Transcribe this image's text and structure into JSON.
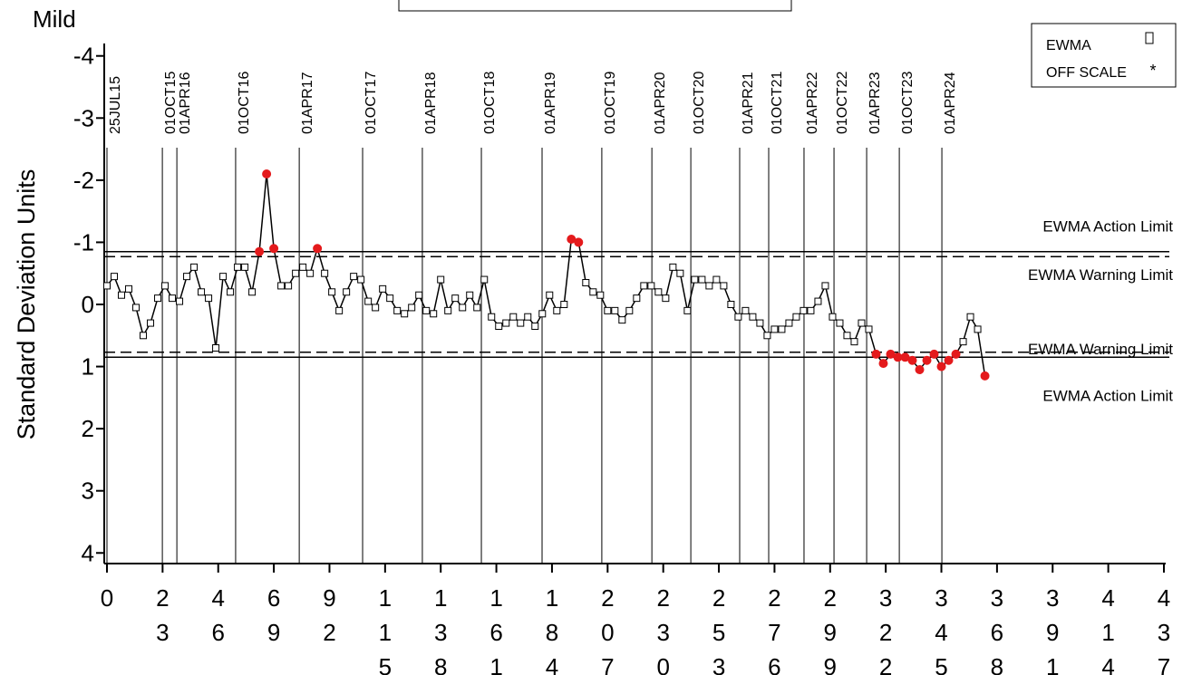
{
  "chart_data": {
    "type": "line",
    "title": "Mild",
    "y_label": "Standard Deviation Units",
    "y_reversed": true,
    "xlim": [
      0,
      437
    ],
    "xticks": [
      0,
      23,
      46,
      69,
      92,
      115,
      138,
      161,
      184,
      207,
      230,
      253,
      276,
      299,
      322,
      345,
      368,
      391,
      414,
      437
    ],
    "ylim": [
      -4.2,
      4.2
    ],
    "yticks": [
      -4,
      -3,
      -2,
      -1,
      0,
      1,
      2,
      3,
      4
    ],
    "reference_lines": [
      {
        "label": "25JUL15",
        "x": 0
      },
      {
        "label": "01OCT15",
        "x": 22.9
      },
      {
        "label": "01APR16",
        "x": 28.9
      },
      {
        "label": "01OCT16",
        "x": 53.2
      },
      {
        "label": "01APR17",
        "x": 79.5
      },
      {
        "label": "01OCT17",
        "x": 105.7
      },
      {
        "label": "01APR18",
        "x": 130.4
      },
      {
        "label": "01OCT18",
        "x": 154.8
      },
      {
        "label": "01APR19",
        "x": 179.9
      },
      {
        "label": "01OCT19",
        "x": 204.6
      },
      {
        "label": "01APR20",
        "x": 225.3
      },
      {
        "label": "01OCT20",
        "x": 241.4
      },
      {
        "label": "01APR21",
        "x": 261.6
      },
      {
        "label": "01OCT21",
        "x": 273.6
      },
      {
        "label": "01APR22",
        "x": 288.2
      },
      {
        "label": "01OCT22",
        "x": 300.6
      },
      {
        "label": "01APR23",
        "x": 314.1
      },
      {
        "label": "01OCT23",
        "x": 327.6
      },
      {
        "label": "01APR24",
        "x": 345.2
      }
    ],
    "limits": [
      {
        "label": "EWMA Action Limit",
        "value": -0.85,
        "style": "solid"
      },
      {
        "label": "EWMA Warning Limit",
        "value": -0.77,
        "style": "dashed"
      },
      {
        "label": "EWMA Warning Limit",
        "value": 0.77,
        "style": "dashed"
      },
      {
        "label": "EWMA Action Limit",
        "value": 0.85,
        "style": "solid"
      }
    ],
    "series": [
      {
        "name": "EWMA",
        "color": "#000000",
        "marker_fill": "#ffffff",
        "alert_color": "#e41a1c",
        "x": [
          0,
          3,
          6,
          9,
          12,
          15,
          18,
          21,
          24,
          27,
          30,
          33,
          36,
          39,
          42,
          45,
          48,
          51,
          54,
          57,
          60,
          63,
          66,
          69,
          72,
          75,
          78,
          81,
          84,
          87,
          90,
          93,
          96,
          99,
          102,
          105,
          108,
          111,
          114,
          117,
          120,
          123,
          126,
          129,
          132,
          135,
          138,
          141,
          144,
          147,
          150,
          153,
          156,
          159,
          162,
          165,
          168,
          171,
          174,
          177,
          180,
          183,
          186,
          189,
          192,
          195,
          198,
          201,
          204,
          207,
          210,
          213,
          216,
          219,
          222,
          225,
          228,
          231,
          234,
          237,
          240,
          243,
          246,
          249,
          252,
          255,
          258,
          261,
          264,
          267,
          270,
          273,
          276,
          279,
          282,
          285,
          288,
          291,
          294,
          297,
          300,
          303,
          306,
          309,
          312,
          315,
          318,
          321,
          324,
          327,
          330,
          333,
          336,
          339,
          342,
          345,
          348,
          351,
          354,
          357,
          360,
          363
        ],
        "values": [
          -0.3,
          -0.45,
          -0.15,
          -0.25,
          0.05,
          0.5,
          0.3,
          -0.1,
          -0.3,
          -0.1,
          -0.05,
          -0.45,
          -0.6,
          -0.2,
          -0.1,
          0.7,
          -0.45,
          -0.2,
          -0.6,
          -0.6,
          -0.2,
          -0.85,
          -2.1,
          -0.9,
          -0.3,
          -0.3,
          -0.5,
          -0.6,
          -0.5,
          -0.9,
          -0.5,
          -0.2,
          0.1,
          -0.2,
          -0.45,
          -0.4,
          -0.05,
          0.05,
          -0.25,
          -0.1,
          0.1,
          0.15,
          0.05,
          -0.15,
          0.1,
          0.15,
          -0.4,
          0.1,
          -0.1,
          0.05,
          -0.15,
          0.05,
          -0.4,
          0.2,
          0.35,
          0.3,
          0.2,
          0.3,
          0.2,
          0.35,
          0.15,
          -0.15,
          0.1,
          0.0,
          -1.05,
          -1.0,
          -0.35,
          -0.2,
          -0.15,
          0.1,
          0.1,
          0.25,
          0.1,
          -0.1,
          -0.3,
          -0.3,
          -0.2,
          -0.1,
          -0.6,
          -0.5,
          0.1,
          -0.4,
          -0.4,
          -0.3,
          -0.4,
          -0.3,
          0.0,
          0.2,
          0.1,
          0.2,
          0.3,
          0.5,
          0.4,
          0.4,
          0.3,
          0.2,
          0.1,
          0.1,
          -0.05,
          -0.3,
          0.2,
          0.3,
          0.5,
          0.6,
          0.3,
          0.4,
          0.8,
          0.95,
          0.8,
          0.85,
          0.85,
          0.9,
          1.05,
          0.9,
          0.8,
          1.0,
          0.9,
          0.8,
          0.6,
          0.2,
          0.4,
          1.15
        ]
      }
    ],
    "legend": {
      "position": "top-right",
      "off_scale_label": "OFF SCALE"
    }
  }
}
